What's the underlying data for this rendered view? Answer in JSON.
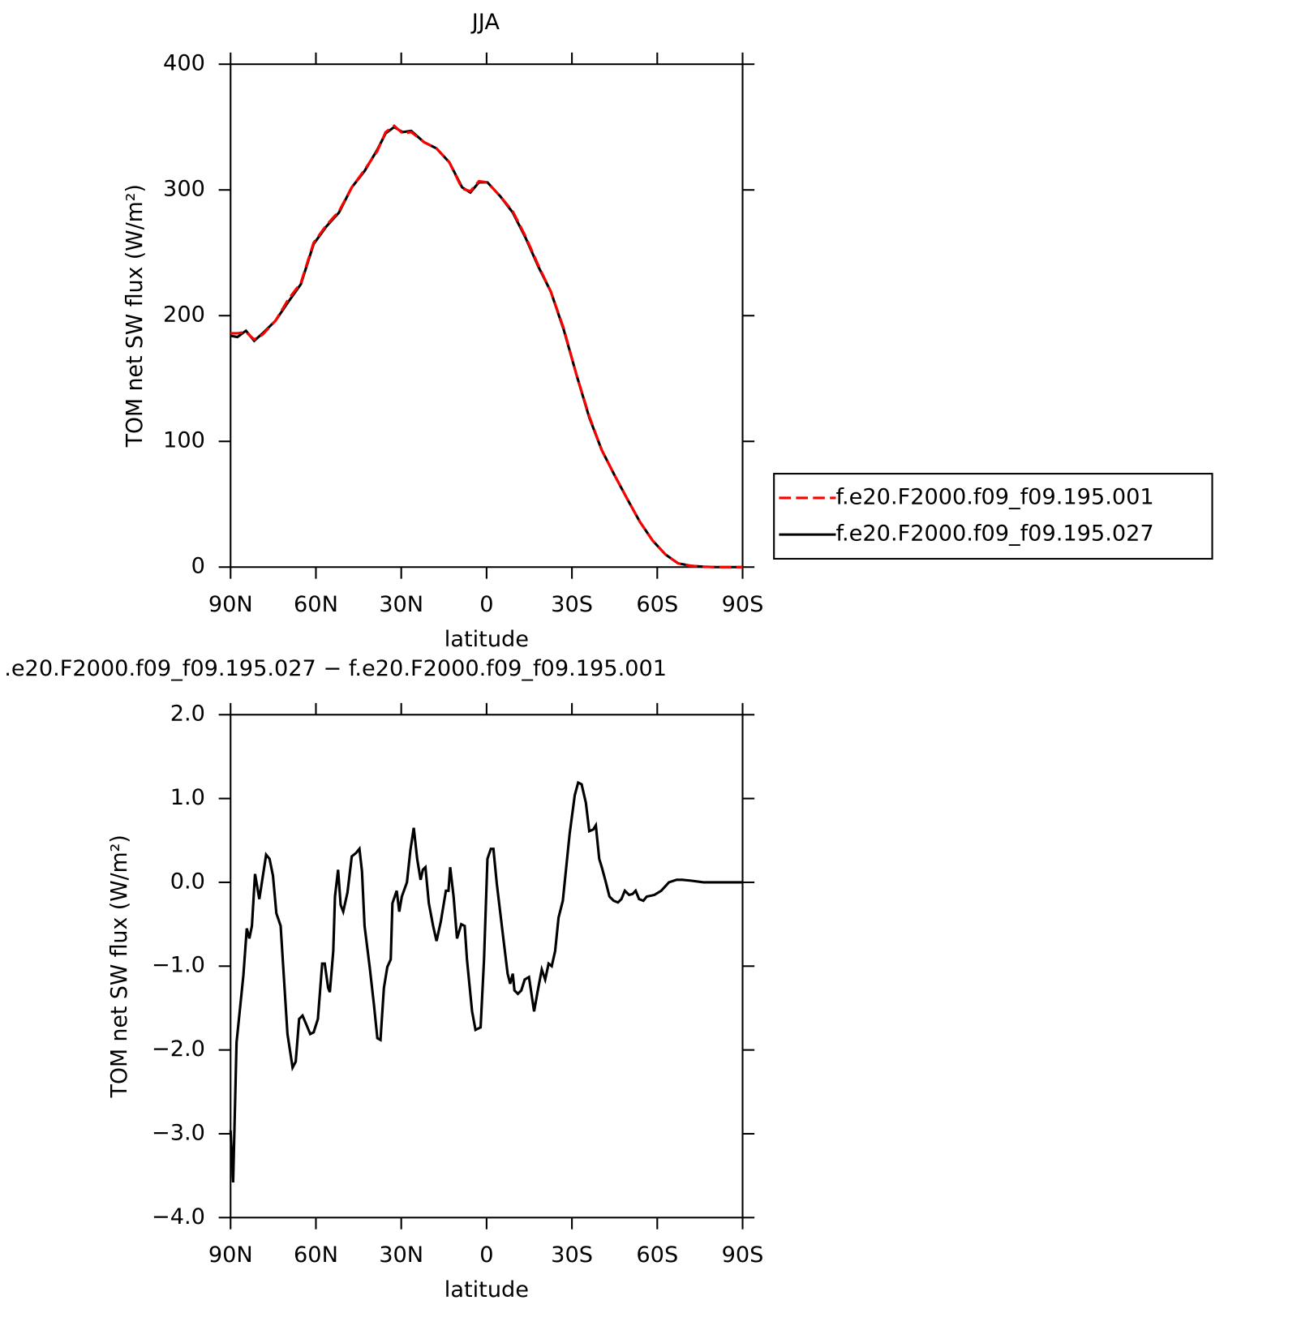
{
  "chart_data": [
    {
      "type": "line",
      "title": "JJA",
      "xlabel": "latitude",
      "ylabel": "TOM net SW flux (W/m²)",
      "x": [
        90,
        87.6,
        84.6,
        81.7,
        78.7,
        74.2,
        69.7,
        65.3,
        60.8,
        56.3,
        51.9,
        47.4,
        42.9,
        38.4,
        35.5,
        32.5,
        29.5,
        26.5,
        22.0,
        17.6,
        13.1,
        8.6,
        5.7,
        2.7,
        -0.3,
        -4.8,
        -9.2,
        -13.7,
        -18.2,
        -22.6,
        -27.1,
        -31.6,
        -36.1,
        -40.5,
        -45.0,
        -49.5,
        -53.9,
        -58.4,
        -62.9,
        -67.3,
        -71.8,
        -76.3,
        -80.8,
        -90
      ],
      "series": [
        {
          "name": "f.e20.F2000.f09_f09.195.001",
          "color": "#ff0000",
          "dash": "dashed",
          "values": [
            186,
            186,
            187,
            181,
            185,
            196,
            213,
            226,
            258,
            272,
            283,
            302,
            316,
            331,
            346,
            351,
            345,
            346,
            338,
            333,
            322,
            301,
            299,
            307,
            306,
            295,
            283,
            263,
            240,
            219,
            190,
            153,
            120,
            93,
            73,
            54,
            36,
            21,
            10,
            3,
            1,
            0.3,
            0,
            0
          ]
        },
        {
          "name": "f.e20.F2000.f09_f09.195.027",
          "color": "#000000",
          "dash": "solid",
          "values": [
            184,
            183,
            188,
            180,
            186,
            196,
            211,
            225,
            257,
            271,
            282,
            302,
            315,
            332,
            345,
            350,
            346,
            347,
            338,
            333,
            322,
            302,
            298,
            306,
            306,
            295,
            282,
            262,
            239,
            219,
            189,
            153,
            119,
            93,
            73,
            54,
            36,
            21,
            10,
            3,
            1,
            0.3,
            0,
            0
          ]
        }
      ],
      "xlim": [
        90,
        -90
      ],
      "xticks": [
        {
          "value": 90,
          "label": "90N"
        },
        {
          "value": 60,
          "label": "60N"
        },
        {
          "value": 30,
          "label": "30N"
        },
        0,
        {
          "value": -30,
          "label": "30S"
        },
        {
          "value": -60,
          "label": "60S"
        },
        {
          "value": -90,
          "label": "90S"
        }
      ],
      "ylim": [
        0,
        400
      ],
      "yticks": [
        0,
        100,
        200,
        300,
        400
      ],
      "legend": "right"
    },
    {
      "type": "line",
      "title": ".e20.F2000.f09_f09.195.027 − f.e20.F2000.f09_f09.195.001",
      "xlabel": "latitude",
      "ylabel": "TOM net SW flux (W/m²)",
      "x": [
        90,
        89.1,
        87.9,
        85.5,
        84.3,
        83.4,
        82.5,
        81.4,
        79.9,
        77.5,
        76.3,
        75.1,
        73.9,
        72.4,
        70.0,
        68.2,
        67.1,
        65.9,
        64.7,
        63.2,
        62.0,
        60.8,
        59.3,
        57.8,
        56.9,
        55.7,
        55.1,
        53.9,
        53.3,
        52.2,
        51.3,
        50.4,
        48.9,
        47.4,
        45.9,
        44.7,
        43.8,
        42.9,
        41.1,
        39.6,
        38.4,
        37.3,
        36.1,
        34.9,
        33.7,
        33.1,
        31.6,
        30.7,
        29.8,
        28.0,
        26.8,
        25.6,
        24.4,
        23.2,
        22.4,
        21.5,
        20.3,
        18.8,
        17.6,
        16.1,
        14.3,
        13.4,
        12.8,
        11.6,
        10.4,
        8.9,
        7.7,
        6.9,
        5.1,
        3.9,
        2.1,
        0.9,
        -0.3,
        -1.5,
        -2.4,
        -3.6,
        -6.0,
        -7.4,
        -8.3,
        -9.2,
        -9.8,
        -11.0,
        -12.2,
        -13.4,
        -14.9,
        -16.7,
        -17.9,
        -19.4,
        -20.6,
        -21.8,
        -22.9,
        -24.1,
        -25.3,
        -26.8,
        -27.7,
        -29.2,
        -31.0,
        -32.2,
        -33.4,
        -34.9,
        -36.1,
        -37.5,
        -38.4,
        -39.6,
        -40.5,
        -41.7,
        -43.2,
        -44.7,
        -46.2,
        -47.4,
        -48.6,
        -50.1,
        -51.3,
        -52.4,
        -53.6,
        -55.1,
        -56.3,
        -59.0,
        -61.4,
        -64.1,
        -66.8,
        -68.8,
        -71.8,
        -76.3,
        -90
      ],
      "series": [
        {
          "color": "#000000",
          "dash": "solid",
          "values": [
            -2.96,
            -3.58,
            -1.91,
            -1.11,
            -0.55,
            -0.67,
            -0.52,
            0.1,
            -0.2,
            0.33,
            0.28,
            0.08,
            -0.37,
            -0.52,
            -1.81,
            -2.21,
            -2.14,
            -1.63,
            -1.59,
            -1.71,
            -1.81,
            -1.79,
            -1.63,
            -0.97,
            -0.97,
            -1.26,
            -1.31,
            -0.82,
            -0.17,
            0.15,
            -0.27,
            -0.35,
            -0.12,
            0.31,
            0.35,
            0.4,
            0.13,
            -0.52,
            -1.01,
            -1.46,
            -1.86,
            -1.88,
            -1.26,
            -1.01,
            -0.92,
            -0.25,
            -0.1,
            -0.35,
            -0.17,
            0.0,
            0.38,
            0.65,
            0.28,
            0.03,
            0.15,
            0.18,
            -0.25,
            -0.52,
            -0.7,
            -0.47,
            -0.1,
            -0.1,
            0.18,
            -0.17,
            -0.67,
            -0.5,
            -0.52,
            -0.92,
            -1.54,
            -1.76,
            -1.73,
            -0.92,
            0.28,
            0.4,
            0.4,
            -0.02,
            -0.7,
            -1.09,
            -1.21,
            -1.09,
            -1.29,
            -1.33,
            -1.29,
            -1.16,
            -1.13,
            -1.54,
            -1.31,
            -1.04,
            -1.16,
            -0.97,
            -1.0,
            -0.82,
            -0.42,
            -0.22,
            0.08,
            0.58,
            1.04,
            1.19,
            1.17,
            0.95,
            0.61,
            0.63,
            0.68,
            0.28,
            0.18,
            0.03,
            -0.17,
            -0.22,
            -0.24,
            -0.2,
            -0.1,
            -0.15,
            -0.14,
            -0.1,
            -0.2,
            -0.22,
            -0.17,
            -0.15,
            -0.1,
            0.0,
            0.03,
            0.03,
            0.02,
            0.0,
            0.0
          ]
        }
      ],
      "xlim": [
        90,
        -90
      ],
      "xticks": [
        {
          "value": 90,
          "label": "90N"
        },
        {
          "value": 60,
          "label": "60N"
        },
        {
          "value": 30,
          "label": "30N"
        },
        0,
        {
          "value": -30,
          "label": "30S"
        },
        {
          "value": -60,
          "label": "60S"
        },
        {
          "value": -90,
          "label": "90S"
        }
      ],
      "ylim": [
        -4,
        2
      ],
      "yticks": [
        {
          "value": -4,
          "label": "−4.0"
        },
        {
          "value": -3,
          "label": "−3.0"
        },
        {
          "value": -2,
          "label": "−2.0"
        },
        {
          "value": -1,
          "label": "−1.0"
        },
        {
          "value": 0,
          "label": "0.0"
        },
        {
          "value": 1,
          "label": "1.0"
        },
        {
          "value": 2,
          "label": "2.0"
        }
      ]
    }
  ]
}
